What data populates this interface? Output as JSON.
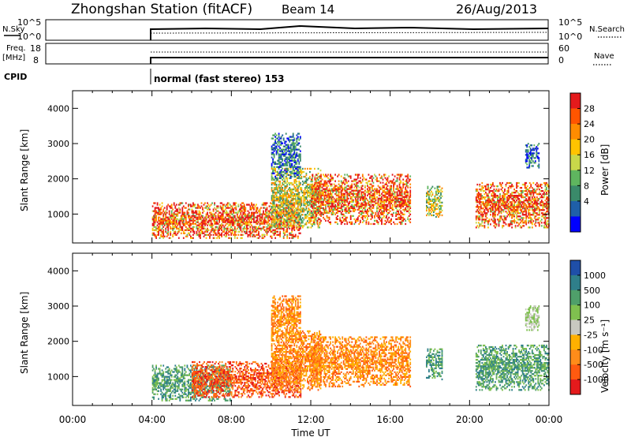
{
  "header": {
    "title": "Zhongshan Station (fitACF)",
    "beam": "Beam 14",
    "date": "26/Aug/2013"
  },
  "panels": {
    "nsky": {
      "left_label": "N.Sky",
      "right_label": "N.Search",
      "left_ticks": [
        "10^5",
        "10^0"
      ],
      "right_ticks": [
        "10^5",
        "10^0"
      ]
    },
    "freq": {
      "left_label_1": "Freq.",
      "left_label_2": "[MHz]",
      "left_ticks": [
        "18",
        "8"
      ],
      "right_label": "Nave",
      "right_ticks": [
        "60",
        "0"
      ]
    },
    "cpid": {
      "label": "CPID",
      "mode": "normal (fast stereo) 153"
    }
  },
  "colorbars": {
    "power": {
      "label": "Power [dB]",
      "ticks": [
        "28",
        "24",
        "20",
        "16",
        "12",
        "8",
        "4"
      ],
      "colors": [
        "#e41a1c",
        "#ff5500",
        "#ff8c00",
        "#ffc300",
        "#c8d84a",
        "#5fb55f",
        "#3a8a6a",
        "#1f5fa8",
        "#0000ff"
      ]
    },
    "velocity": {
      "label": "Velocity [m s⁻¹]",
      "ticks": [
        "1000",
        "500",
        "100",
        "25",
        "-25",
        "-100",
        "-500",
        "-1000"
      ],
      "colors": [
        "#1f4fa8",
        "#2f7f8a",
        "#4f9f6a",
        "#7fc04f",
        "#c8c8c0",
        "#ffb000",
        "#ff8c1a",
        "#ff5a10",
        "#e41a1c"
      ]
    }
  },
  "chart_data": [
    {
      "type": "heatmap",
      "name": "Power",
      "ylabel": "Slant Range [km]",
      "yticks": [
        "4000",
        "3000",
        "2000",
        "1000"
      ],
      "ylim": [
        180,
        4500
      ],
      "xlim": [
        0,
        24
      ],
      "echo_regions": [
        {
          "t0": 4.0,
          "t1": 11.5,
          "r0": 300,
          "r1": 1300,
          "level": "high"
        },
        {
          "t0": 10.0,
          "t1": 12.5,
          "r0": 600,
          "r1": 2300,
          "level": "mid"
        },
        {
          "t0": 12.0,
          "t1": 17.0,
          "r0": 700,
          "r1": 2100,
          "level": "high"
        },
        {
          "t0": 17.8,
          "t1": 18.6,
          "r0": 900,
          "r1": 1800,
          "level": "mid"
        },
        {
          "t0": 20.3,
          "t1": 24.0,
          "r0": 600,
          "r1": 1900,
          "level": "high"
        },
        {
          "t0": 10.0,
          "t1": 11.5,
          "r0": 2000,
          "r1": 3300,
          "level": "low"
        },
        {
          "t0": 22.8,
          "t1": 23.5,
          "r0": 2300,
          "r1": 3000,
          "level": "low"
        }
      ]
    },
    {
      "type": "heatmap",
      "name": "Velocity",
      "ylabel": "Slant Range [km]",
      "yticks": [
        "4000",
        "3000",
        "2000",
        "1000"
      ],
      "ylim": [
        180,
        4500
      ],
      "xlim": [
        0,
        24
      ],
      "xticks": [
        "00:00",
        "04:00",
        "08:00",
        "12:00",
        "16:00",
        "20:00",
        "00:00"
      ],
      "xlabel": "Time UT",
      "echo_regions": [
        {
          "t0": 4.0,
          "t1": 8.0,
          "r0": 300,
          "r1": 1300,
          "level": "green"
        },
        {
          "t0": 6.0,
          "t1": 11.5,
          "r0": 400,
          "r1": 1400,
          "level": "red"
        },
        {
          "t0": 10.0,
          "t1": 12.5,
          "r0": 600,
          "r1": 2300,
          "level": "orange"
        },
        {
          "t0": 12.0,
          "t1": 17.0,
          "r0": 700,
          "r1": 2100,
          "level": "orange"
        },
        {
          "t0": 17.8,
          "t1": 18.6,
          "r0": 900,
          "r1": 1800,
          "level": "green"
        },
        {
          "t0": 20.3,
          "t1": 24.0,
          "r0": 600,
          "r1": 1900,
          "level": "green"
        },
        {
          "t0": 10.0,
          "t1": 11.5,
          "r0": 2000,
          "r1": 3300,
          "level": "orange"
        },
        {
          "t0": 22.8,
          "t1": 23.5,
          "r0": 2300,
          "r1": 3000,
          "level": "grey"
        }
      ]
    }
  ]
}
